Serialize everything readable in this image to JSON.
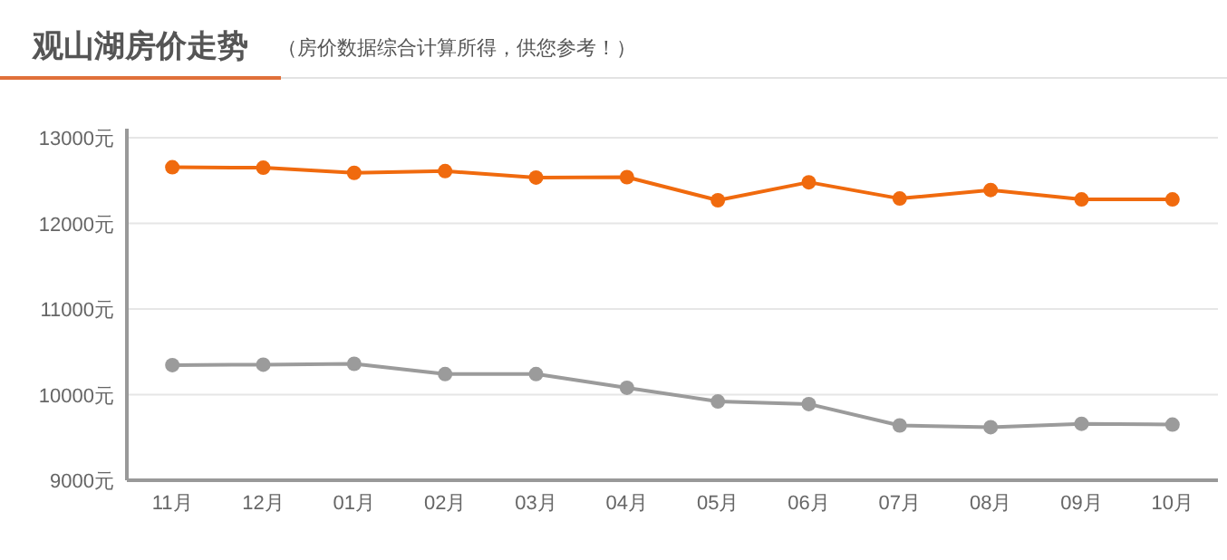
{
  "chart_data": {
    "type": "line",
    "title": "观山湖房价走势",
    "subtitle": "（房价数据综合计算所得，供您参考！）",
    "categories": [
      "11月",
      "12月",
      "01月",
      "02月",
      "03月",
      "04月",
      "05月",
      "06月",
      "07月",
      "08月",
      "09月",
      "10月"
    ],
    "series": [
      {
        "color": "#f06a0e",
        "values": [
          12655,
          12650,
          12590,
          12610,
          12535,
          12540,
          12270,
          12480,
          12290,
          12390,
          12280,
          12280
        ]
      },
      {
        "color": "#9b9b9b",
        "values": [
          10345,
          10350,
          10360,
          10240,
          10240,
          10080,
          9920,
          9890,
          9640,
          9620,
          9660,
          9650
        ]
      }
    ],
    "ylim": [
      9000,
      13000
    ],
    "yticks": [
      {
        "value": 9000,
        "label": "9000元"
      },
      {
        "value": 10000,
        "label": "10000元"
      },
      {
        "value": 11000,
        "label": "11000元"
      },
      {
        "value": 12000,
        "label": "12000元"
      },
      {
        "value": 13000,
        "label": "13000元"
      }
    ],
    "grid": "y",
    "marker": "circle",
    "line_style": "solid"
  }
}
